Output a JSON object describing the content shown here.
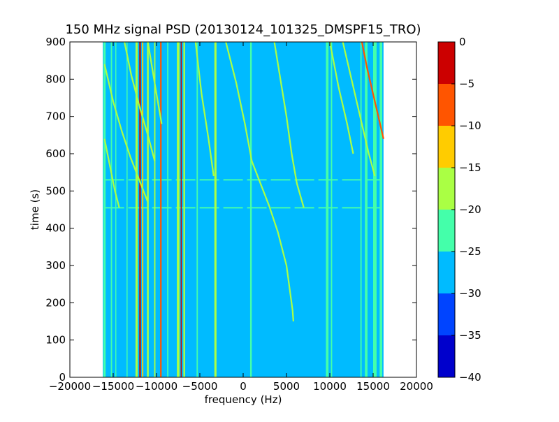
{
  "chart_data": [
    {
      "type": "heatmap",
      "subtype": "filled-contour spectrogram",
      "title": "150 MHz signal PSD (20130124_101325_DMSPF15_TRO)",
      "xlabel": "frequency (Hz)",
      "ylabel": "time (s)",
      "xlim": [
        -20000,
        20000
      ],
      "ylim": [
        0,
        900
      ],
      "xticks": [
        -20000,
        -15000,
        -10000,
        -5000,
        0,
        5000,
        10000,
        15000,
        20000
      ],
      "xtick_labels": [
        "−20000",
        "−15000",
        "−10000",
        "−5000",
        "0",
        "5000",
        "10000",
        "15000",
        "20000"
      ],
      "yticks": [
        0,
        100,
        200,
        300,
        400,
        500,
        600,
        700,
        800,
        900
      ],
      "ytick_labels": [
        "0",
        "100",
        "200",
        "300",
        "400",
        "500",
        "600",
        "700",
        "800",
        "900"
      ],
      "data_extent_x": [
        -16200,
        16200
      ],
      "background_level": -27.5,
      "grid": false,
      "vertical_lines": [
        {
          "freq": -16000,
          "level": -22.5,
          "t0": 0,
          "t1": 900,
          "w": 250
        },
        {
          "freq": -15200,
          "level": -22.5,
          "t0": 0,
          "t1": 900,
          "w": 150
        },
        {
          "freq": -14700,
          "level": -22.5,
          "t0": 0,
          "t1": 900,
          "w": 120
        },
        {
          "freq": -13400,
          "level": -22.5,
          "t0": 0,
          "t1": 900,
          "w": 120
        },
        {
          "freq": -12300,
          "level": -17.5,
          "t0": 0,
          "t1": 900,
          "w": 250
        },
        {
          "freq": -11900,
          "level": -2.5,
          "t0": 0,
          "t1": 900,
          "w": 180
        },
        {
          "freq": -11600,
          "level": -12.5,
          "t0": 0,
          "t1": 900,
          "w": 150
        },
        {
          "freq": -11000,
          "level": -17.5,
          "t0": 0,
          "t1": 900,
          "w": 200
        },
        {
          "freq": -10200,
          "level": -17.5,
          "t0": 0,
          "t1": 900,
          "w": 150
        },
        {
          "freq": -9500,
          "level": -7.5,
          "t0": 0,
          "t1": 900,
          "w": 180
        },
        {
          "freq": -8700,
          "level": -22.5,
          "t0": 0,
          "t1": 900,
          "w": 150
        },
        {
          "freq": -7500,
          "level": -17.5,
          "t0": 0,
          "t1": 900,
          "w": 300
        },
        {
          "freq": -7150,
          "level": -2.5,
          "t0": 0,
          "t1": 900,
          "w": 120
        },
        {
          "freq": -6800,
          "level": -17.5,
          "t0": 0,
          "t1": 900,
          "w": 200
        },
        {
          "freq": -5300,
          "level": -22.5,
          "t0": 0,
          "t1": 900,
          "w": 150
        },
        {
          "freq": -3200,
          "level": -17.5,
          "t0": 0,
          "t1": 900,
          "w": 250
        },
        {
          "freq": 900,
          "level": -22.5,
          "t0": 0,
          "t1": 900,
          "w": 200
        },
        {
          "freq": 9700,
          "level": -22.5,
          "t0": 0,
          "t1": 900,
          "w": 300
        },
        {
          "freq": 10200,
          "level": -22.5,
          "t0": 0,
          "t1": 900,
          "w": 150
        },
        {
          "freq": 13600,
          "level": -22.5,
          "t0": 0,
          "t1": 900,
          "w": 150
        },
        {
          "freq": 14200,
          "level": -22.5,
          "t0": 0,
          "t1": 900,
          "w": 300
        },
        {
          "freq": 15200,
          "level": -22.5,
          "t0": 0,
          "t1": 900,
          "w": 400
        },
        {
          "freq": 15900,
          "level": -22.5,
          "t0": 0,
          "t1": 900,
          "w": 300
        }
      ],
      "tracks": [
        {
          "level": -17.5,
          "points": [
            [
              -16000,
              840
            ],
            [
              -15000,
              740
            ],
            [
              -14000,
              660
            ],
            [
              -13000,
              590
            ],
            [
              -12000,
              530
            ],
            [
              -11000,
              470
            ]
          ]
        },
        {
          "level": -17.5,
          "points": [
            [
              -16000,
              640
            ],
            [
              -15400,
              570
            ],
            [
              -14800,
              500
            ],
            [
              -14300,
              455
            ]
          ]
        },
        {
          "level": -17.5,
          "points": [
            [
              -13700,
              900
            ],
            [
              -12900,
              810
            ],
            [
              -12000,
              730
            ],
            [
              -11000,
              650
            ],
            [
              -10200,
              580
            ]
          ]
        },
        {
          "level": -17.5,
          "points": [
            [
              -11000,
              900
            ],
            [
              -10500,
              830
            ],
            [
              -10000,
              760
            ],
            [
              -9400,
              680
            ]
          ]
        },
        {
          "level": -17.5,
          "points": [
            [
              -5500,
              900
            ],
            [
              -4800,
              760
            ],
            [
              -4000,
              640
            ],
            [
              -3400,
              540
            ]
          ]
        },
        {
          "level": -17.5,
          "points": [
            [
              -2000,
              900
            ],
            [
              -800,
              790
            ],
            [
              200,
              680
            ],
            [
              1000,
              580
            ],
            [
              2000,
              520
            ],
            [
              3000,
              460
            ],
            [
              4000,
              390
            ],
            [
              5000,
              300
            ],
            [
              5700,
              180
            ],
            [
              5800,
              150
            ]
          ]
        },
        {
          "level": -17.5,
          "points": [
            [
              3600,
              900
            ],
            [
              4300,
              800
            ],
            [
              5000,
              700
            ],
            [
              5600,
              600
            ],
            [
              6200,
              520
            ],
            [
              7000,
              455
            ]
          ]
        },
        {
          "level": -17.5,
          "points": [
            [
              10000,
              900
            ],
            [
              11000,
              780
            ],
            [
              12000,
              680
            ],
            [
              12700,
              600
            ]
          ]
        },
        {
          "level": -17.5,
          "points": [
            [
              11500,
              900
            ],
            [
              12500,
              800
            ],
            [
              13500,
              700
            ],
            [
              14500,
              600
            ],
            [
              15200,
              540
            ]
          ]
        },
        {
          "level": -7.5,
          "points": [
            [
              13700,
              900
            ],
            [
              14300,
              830
            ],
            [
              15000,
              760
            ],
            [
              15700,
              690
            ],
            [
              16200,
              640
            ]
          ]
        }
      ],
      "horizontal_bands": [
        {
          "time": 530,
          "x0": -16000,
          "x1": 16000,
          "level": -22.5
        },
        {
          "time": 455,
          "x0": -16000,
          "x1": 16000,
          "level": -22.5
        }
      ],
      "colorbar": {
        "levels": [
          -40,
          -35,
          -30,
          -25,
          -20,
          -15,
          -10,
          -5,
          0
        ],
        "tick_labels": [
          "−40",
          "−35",
          "−30",
          "−25",
          "−20",
          "−15",
          "−10",
          "−5",
          "0"
        ],
        "colors": [
          "#0000cc",
          "#0044ff",
          "#00bbff",
          "#44ffaa",
          "#aaff44",
          "#ffcc00",
          "#ff5500",
          "#cc0000"
        ]
      }
    }
  ]
}
